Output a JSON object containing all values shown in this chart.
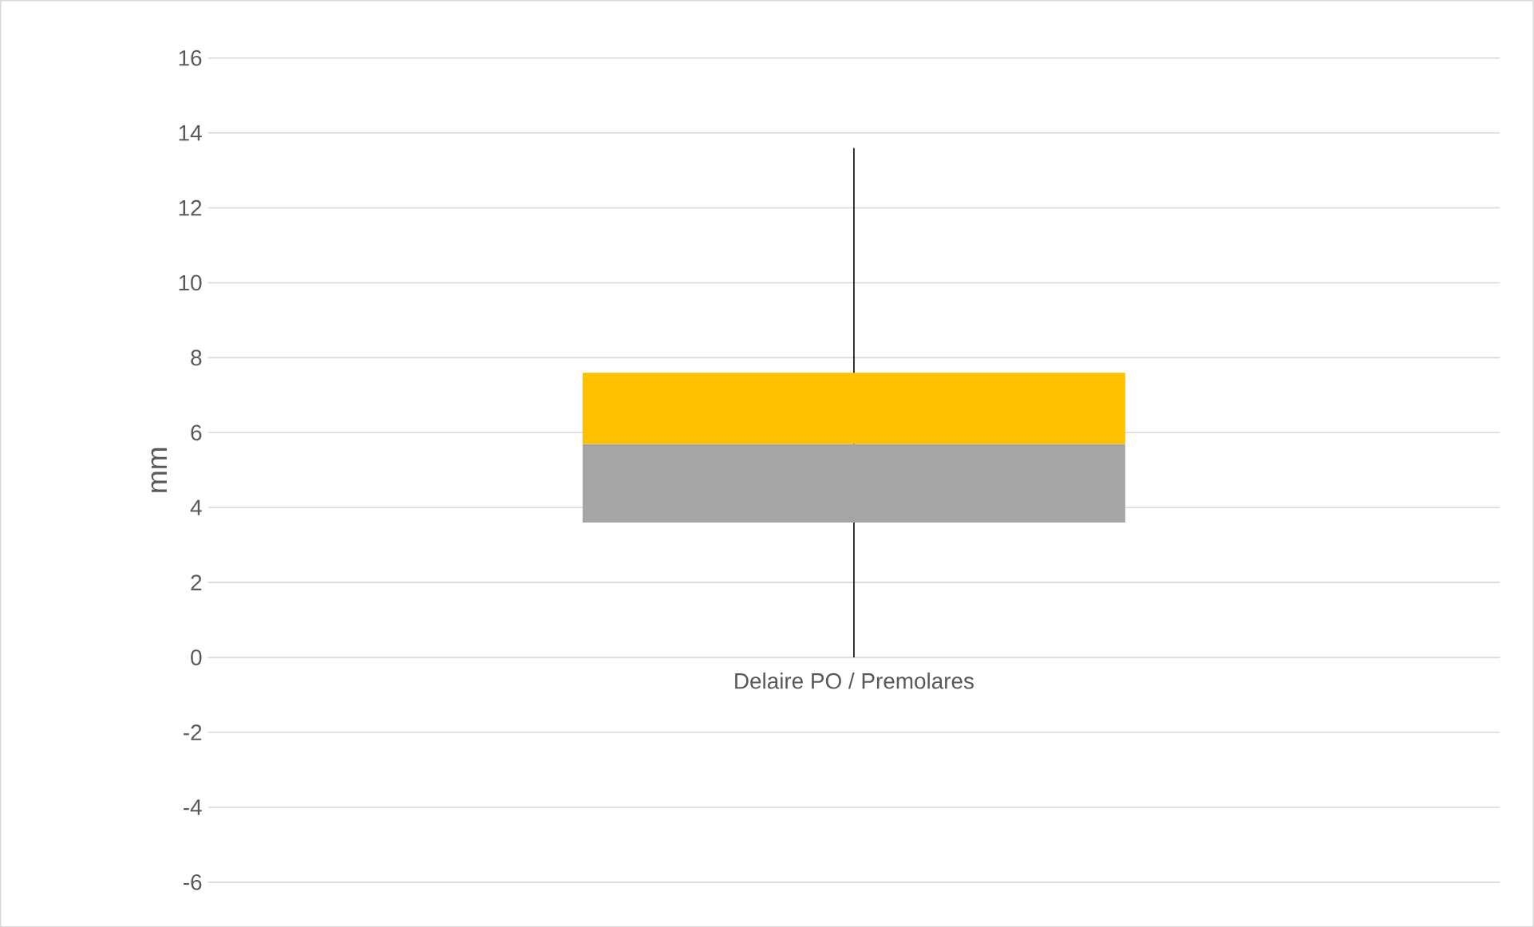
{
  "chart_data": {
    "type": "box",
    "ylabel": "mm",
    "categories": [
      "Delaire PO / Premolares"
    ],
    "series": [
      {
        "color": "#a5a5a5",
        "boxes": [
          {
            "low": 0,
            "q1": 3.6,
            "median": 5.7,
            "q3": 7.6,
            "high": 13.6
          }
        ]
      }
    ],
    "ylim": [
      -6,
      16
    ],
    "yticks": [
      -6,
      -4,
      -2,
      0,
      2,
      4,
      6,
      8,
      10,
      12,
      14,
      16
    ],
    "grid": "y"
  }
}
